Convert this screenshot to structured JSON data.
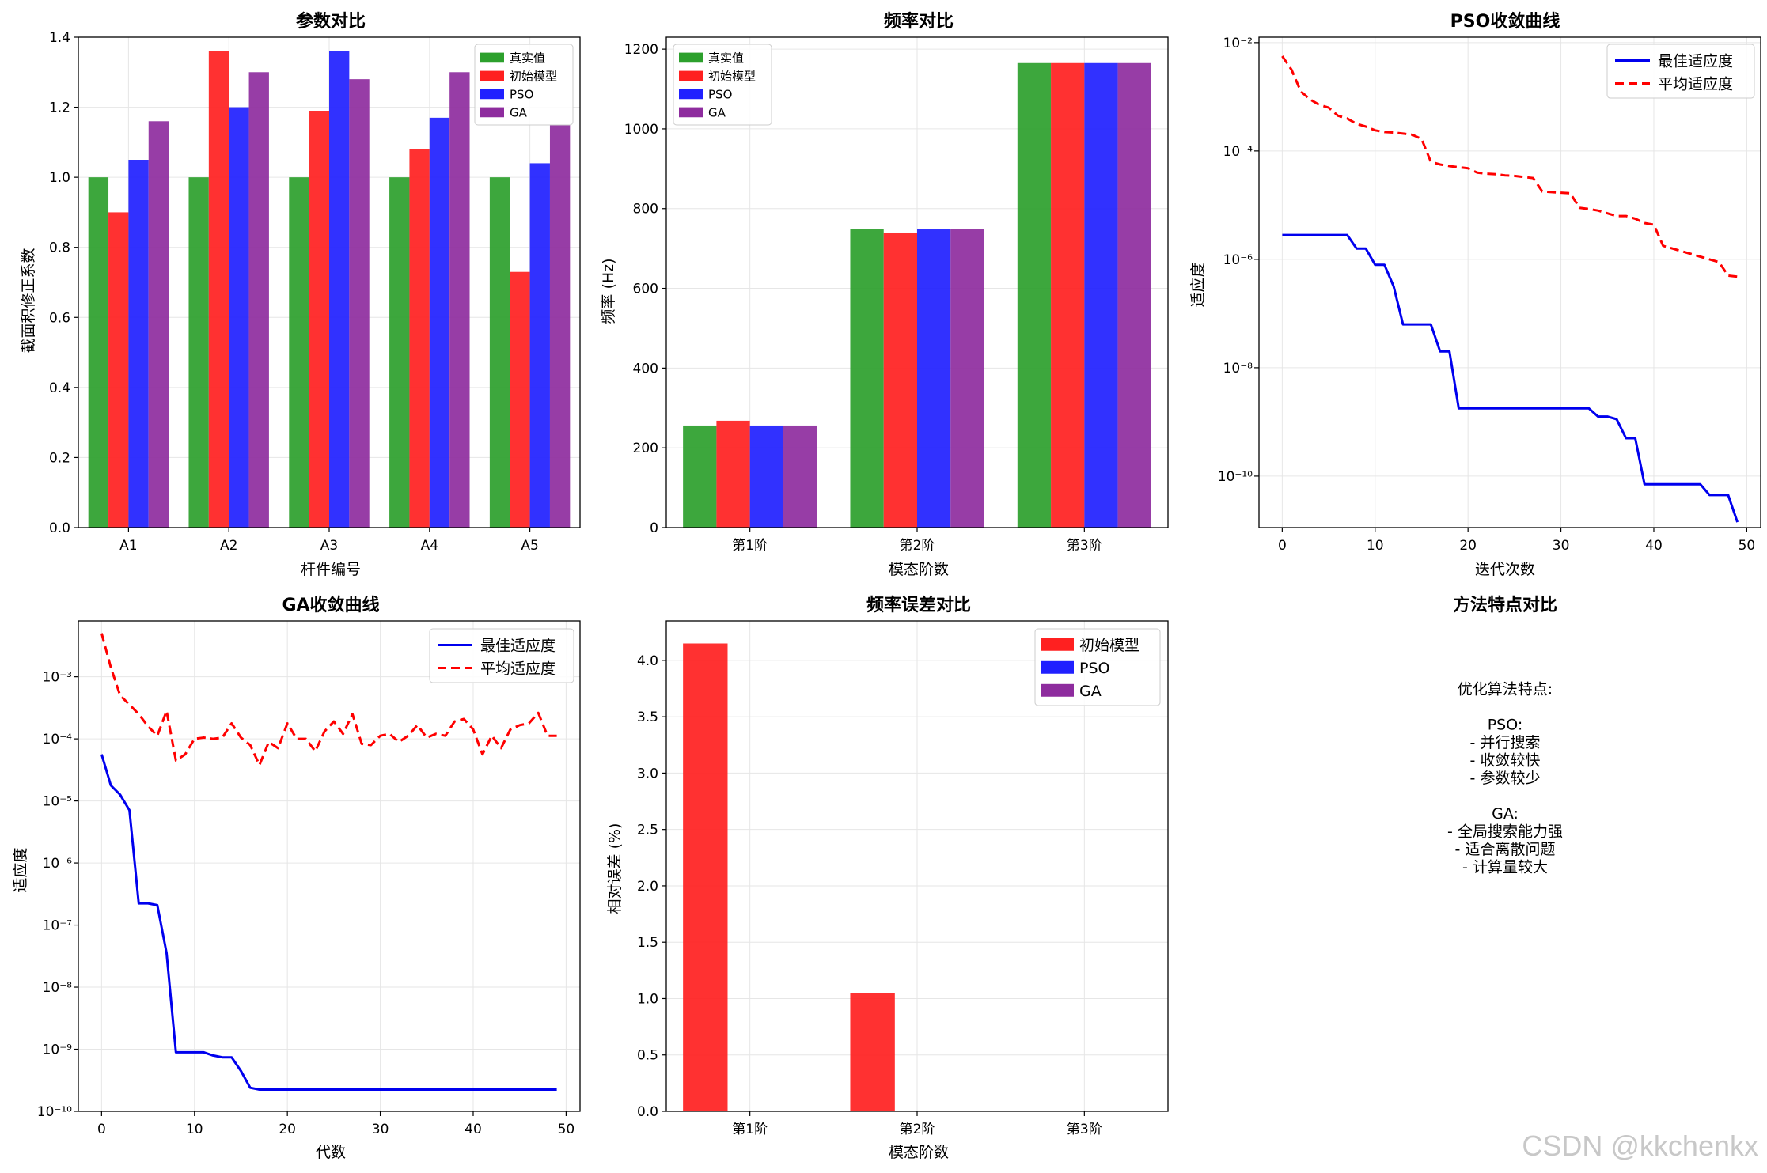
{
  "chart_data": [
    {
      "id": "param",
      "type": "bar",
      "title": "参数对比",
      "xlabel": "杆件编号",
      "ylabel": "截面积修正系数",
      "categories": [
        "A1",
        "A2",
        "A3",
        "A4",
        "A5"
      ],
      "series": [
        {
          "name": "真实值",
          "color": "#2ca02c",
          "values": [
            1.0,
            1.0,
            1.0,
            1.0,
            1.0
          ]
        },
        {
          "name": "初始模型",
          "color": "#ff2020",
          "values": [
            0.9,
            1.36,
            1.19,
            1.08,
            0.73
          ]
        },
        {
          "name": "PSO",
          "color": "#2020ff",
          "values": [
            1.05,
            1.2,
            1.36,
            1.17,
            1.04
          ]
        },
        {
          "name": "GA",
          "color": "#8e2c9e",
          "values": [
            1.16,
            1.3,
            1.28,
            1.3,
            1.15
          ]
        }
      ],
      "ylim": [
        0,
        1.4
      ],
      "yticks": [
        "0.0",
        "0.2",
        "0.4",
        "0.6",
        "0.8",
        "1.0",
        "1.2",
        "1.4"
      ],
      "legend": "top-right",
      "grid": true
    },
    {
      "id": "freq",
      "type": "bar",
      "title": "频率对比",
      "xlabel": "模态阶数",
      "ylabel": "频率 (Hz)",
      "categories": [
        "第1阶",
        "第2阶",
        "第3阶"
      ],
      "series": [
        {
          "name": "真实值",
          "color": "#2ca02c",
          "values": [
            256,
            748,
            1165
          ]
        },
        {
          "name": "初始模型",
          "color": "#ff2020",
          "values": [
            268,
            740,
            1165
          ]
        },
        {
          "name": "PSO",
          "color": "#2020ff",
          "values": [
            256,
            748,
            1165
          ]
        },
        {
          "name": "GA",
          "color": "#8e2c9e",
          "values": [
            256,
            748,
            1165
          ]
        }
      ],
      "ylim": [
        0,
        1230
      ],
      "yticks": [
        "0",
        "200",
        "400",
        "600",
        "800",
        "1000",
        "1200"
      ],
      "legend": "top-left",
      "grid": true
    },
    {
      "id": "pso",
      "type": "line",
      "title": "PSO收敛曲线",
      "xlabel": "迭代次数",
      "ylabel": "适应度",
      "yscale": "log",
      "ylim_exp": [
        -10.95,
        -1.9
      ],
      "xlim": [
        -2.5,
        51.5
      ],
      "xticks": [
        "0",
        "10",
        "20",
        "30",
        "40",
        "50"
      ],
      "ytick_labels": [
        "10⁻²",
        "10⁻⁴",
        "10⁻⁶",
        "10⁻⁸",
        "10⁻¹⁰"
      ],
      "ytick_exps": [
        -2,
        -4,
        -6,
        -8,
        -10
      ],
      "x": [
        0,
        1,
        2,
        3,
        4,
        5,
        6,
        7,
        8,
        9,
        10,
        11,
        12,
        13,
        14,
        15,
        16,
        17,
        18,
        19,
        20,
        21,
        22,
        23,
        24,
        25,
        26,
        27,
        28,
        29,
        30,
        31,
        32,
        33,
        34,
        35,
        36,
        37,
        38,
        39,
        40,
        41,
        42,
        43,
        44,
        45,
        46,
        47,
        48,
        49
      ],
      "series": [
        {
          "name": "最佳适应度",
          "color": "#0000ee",
          "style": "solid",
          "log10_values": [
            -5.55,
            -5.55,
            -5.55,
            -5.55,
            -5.55,
            -5.55,
            -5.55,
            -5.55,
            -5.8,
            -5.8,
            -6.1,
            -6.1,
            -6.5,
            -7.2,
            -7.2,
            -7.2,
            -7.2,
            -7.7,
            -7.7,
            -8.75,
            -8.75,
            -8.75,
            -8.75,
            -8.75,
            -8.75,
            -8.75,
            -8.75,
            -8.75,
            -8.75,
            -8.75,
            -8.75,
            -8.75,
            -8.75,
            -8.75,
            -8.9,
            -8.9,
            -8.95,
            -9.3,
            -9.3,
            -10.15,
            -10.15,
            -10.15,
            -10.15,
            -10.15,
            -10.15,
            -10.15,
            -10.35,
            -10.35,
            -10.35,
            -10.85
          ]
        },
        {
          "name": "平均适应度",
          "color": "#ff0000",
          "style": "dashed",
          "log10_values": [
            -2.25,
            -2.5,
            -2.9,
            -3.05,
            -3.15,
            -3.2,
            -3.35,
            -3.4,
            -3.5,
            -3.55,
            -3.62,
            -3.65,
            -3.66,
            -3.68,
            -3.7,
            -3.78,
            -4.2,
            -4.25,
            -4.28,
            -4.3,
            -4.32,
            -4.4,
            -4.42,
            -4.43,
            -4.45,
            -4.46,
            -4.48,
            -4.5,
            -4.75,
            -4.76,
            -4.77,
            -4.78,
            -5.05,
            -5.07,
            -5.1,
            -5.15,
            -5.2,
            -5.2,
            -5.25,
            -5.33,
            -5.36,
            -5.75,
            -5.8,
            -5.85,
            -5.9,
            -5.95,
            -6.0,
            -6.05,
            -6.3,
            -6.32
          ]
        }
      ],
      "legend": "top-right",
      "grid": true
    },
    {
      "id": "ga",
      "type": "line",
      "title": "GA收敛曲线",
      "xlabel": "代数",
      "ylabel": "适应度",
      "yscale": "log",
      "ylim_exp": [
        -10.0,
        -2.1
      ],
      "xlim": [
        -2.5,
        51.5
      ],
      "xticks": [
        "0",
        "10",
        "20",
        "30",
        "40",
        "50"
      ],
      "ytick_labels": [
        "10⁻³",
        "10⁻⁴",
        "10⁻⁵",
        "10⁻⁶",
        "10⁻⁷",
        "10⁻⁸",
        "10⁻⁹",
        "10⁻¹⁰"
      ],
      "ytick_exps": [
        -3,
        -4,
        -5,
        -6,
        -7,
        -8,
        -9,
        -10
      ],
      "x": [
        0,
        1,
        2,
        3,
        4,
        5,
        6,
        7,
        8,
        9,
        10,
        11,
        12,
        13,
        14,
        15,
        16,
        17,
        18,
        19,
        20,
        21,
        22,
        23,
        24,
        25,
        26,
        27,
        28,
        29,
        30,
        31,
        32,
        33,
        34,
        35,
        36,
        37,
        38,
        39,
        40,
        41,
        42,
        43,
        44,
        45,
        46,
        47,
        48,
        49
      ],
      "series": [
        {
          "name": "最佳适应度",
          "color": "#0000ee",
          "style": "solid",
          "log10_values": [
            -4.25,
            -4.75,
            -4.9,
            -5.15,
            -6.65,
            -6.65,
            -6.68,
            -7.45,
            -9.05,
            -9.05,
            -9.05,
            -9.05,
            -9.1,
            -9.13,
            -9.13,
            -9.35,
            -9.62,
            -9.65,
            -9.65,
            -9.65,
            -9.65,
            -9.65,
            -9.65,
            -9.65,
            -9.65,
            -9.65,
            -9.65,
            -9.65,
            -9.65,
            -9.65,
            -9.65,
            -9.65,
            -9.65,
            -9.65,
            -9.65,
            -9.65,
            -9.65,
            -9.65,
            -9.65,
            -9.65,
            -9.65,
            -9.65,
            -9.65,
            -9.65,
            -9.65,
            -9.65,
            -9.65,
            -9.65,
            -9.65,
            -9.65
          ]
        },
        {
          "name": "平均适应度",
          "color": "#ff0000",
          "style": "dashed",
          "log10_values": [
            -2.3,
            -2.85,
            -3.3,
            -3.45,
            -3.6,
            -3.8,
            -3.95,
            -3.55,
            -4.35,
            -4.25,
            -4.0,
            -3.98,
            -4.0,
            -3.98,
            -3.75,
            -3.98,
            -4.1,
            -4.42,
            -4.05,
            -4.15,
            -3.75,
            -4.0,
            -4.0,
            -4.2,
            -3.88,
            -3.72,
            -3.92,
            -3.6,
            -4.08,
            -4.1,
            -3.95,
            -3.92,
            -4.05,
            -3.95,
            -3.78,
            -3.98,
            -3.92,
            -3.95,
            -3.72,
            -3.68,
            -3.85,
            -4.25,
            -3.95,
            -4.15,
            -3.85,
            -3.78,
            -3.75,
            -3.58,
            -3.95,
            -3.95
          ]
        }
      ],
      "legend": "top-right",
      "grid": true
    },
    {
      "id": "err",
      "type": "bar",
      "title": "频率误差对比",
      "xlabel": "模态阶数",
      "ylabel": "相对误差 (%)",
      "categories": [
        "第1阶",
        "第2阶",
        "第3阶"
      ],
      "series": [
        {
          "name": "初始模型",
          "color": "#ff2020",
          "values": [
            4.15,
            1.05,
            0.0
          ]
        },
        {
          "name": "PSO",
          "color": "#2020ff",
          "values": [
            0.0,
            0.0,
            0.0
          ]
        },
        {
          "name": "GA",
          "color": "#8e2c9e",
          "values": [
            0.0,
            0.0,
            0.0
          ]
        }
      ],
      "ylim": [
        0,
        4.35
      ],
      "yticks": [
        "0.0",
        "0.5",
        "1.0",
        "1.5",
        "2.0",
        "2.5",
        "3.0",
        "3.5",
        "4.0"
      ],
      "legend": "top-right",
      "grid": true
    }
  ],
  "notes_panel": {
    "title": "方法特点对比",
    "lines": [
      "优化算法特点:",
      "",
      "PSO:",
      "- 并行搜索",
      "- 收敛较快",
      "- 参数较少",
      "",
      "GA:",
      "- 全局搜索能力强",
      "- 适合离散问题",
      "- 计算量较大"
    ]
  },
  "watermark": "CSDN @kkchenkx"
}
